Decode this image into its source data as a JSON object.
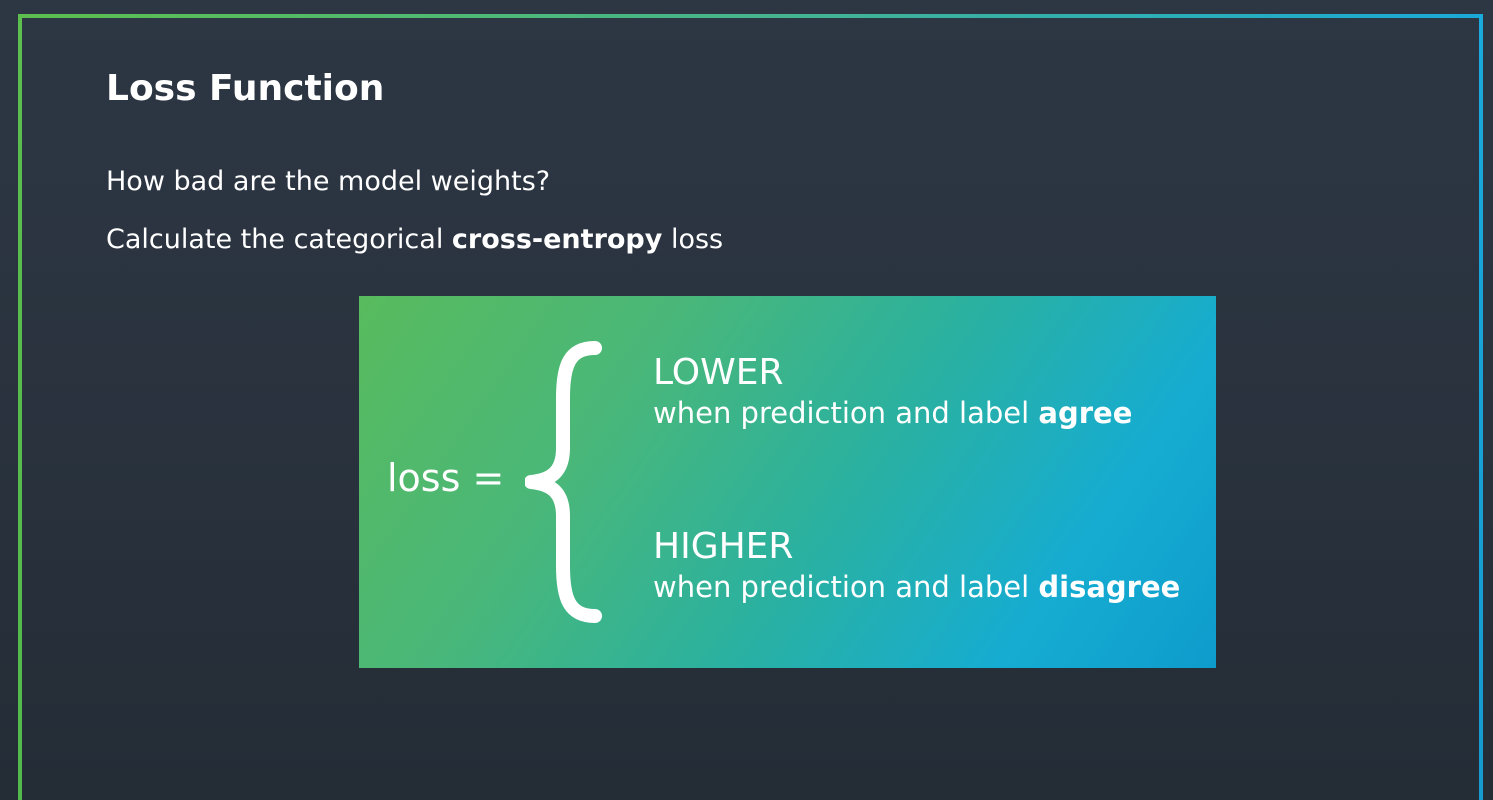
{
  "slide": {
    "title": "Loss Function",
    "line1": "How bad are the model weights?",
    "line2": {
      "prefix": "Calculate the categorical ",
      "emphasis": "cross-entropy",
      "suffix": " loss"
    }
  },
  "diagram": {
    "loss_label": "loss =",
    "cases": [
      {
        "heading": "LOWER",
        "prefix": "when prediction and label ",
        "emphasis": "agree"
      },
      {
        "heading": "HIGHER",
        "prefix": "when prediction and label ",
        "emphasis": "disagree"
      }
    ]
  },
  "colors": {
    "background": "#29323d",
    "frame_green": "#5cbf4e",
    "frame_blue": "#19a9d8",
    "panel_green": "#58bb5d",
    "panel_blue": "#16acd1",
    "text": "#ffffff"
  }
}
